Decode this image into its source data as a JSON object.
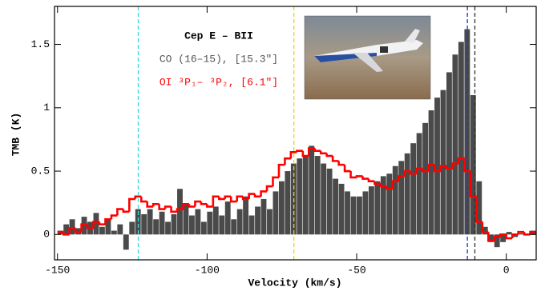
{
  "chart_data": {
    "type": "histogram",
    "title": "Cep E – BII",
    "x_label": "Velocity (km/s)",
    "y_label": "TMB (K)",
    "xlim": [
      -151,
      10
    ],
    "ylim": [
      -0.2,
      1.8
    ],
    "xticks": [
      -150,
      -100,
      -50,
      0
    ],
    "yticks": [
      0,
      0.5,
      1,
      1.5
    ],
    "bins": [
      -150,
      -148,
      -146,
      -144,
      -142,
      -140,
      -138,
      -136,
      -134,
      -132,
      -130,
      -128,
      -126,
      -124,
      -122,
      -120,
      -118,
      -116,
      -114,
      -112,
      -110,
      -108,
      -106,
      -104,
      -102,
      -100,
      -98,
      -96,
      -94,
      -92,
      -90,
      -88,
      -86,
      -84,
      -82,
      -80,
      -78,
      -76,
      -74,
      -72,
      -70,
      -68,
      -66,
      -64,
      -62,
      -60,
      -58,
      -56,
      -54,
      -52,
      -50,
      -48,
      -46,
      -44,
      -42,
      -40,
      -38,
      -36,
      -34,
      -32,
      -30,
      -28,
      -26,
      -24,
      -22,
      -20,
      -18,
      -16,
      -14,
      -12,
      -10,
      -8,
      -6,
      -4,
      -2,
      0,
      2,
      4,
      6,
      8,
      10
    ],
    "series": [
      {
        "name": "CO (16–15), [15.3″]",
        "color": "#4a4a4a",
        "style": "bars",
        "values": [
          0.03,
          0.08,
          0.12,
          0.05,
          0.14,
          0.1,
          0.17,
          0.06,
          0.12,
          0.03,
          0.08,
          -0.12,
          0.1,
          0.2,
          0.16,
          0.2,
          0.12,
          0.18,
          0.1,
          0.16,
          0.36,
          0.24,
          0.15,
          0.2,
          0.1,
          0.18,
          0.22,
          0.15,
          0.26,
          0.12,
          0.2,
          0.3,
          0.15,
          0.22,
          0.28,
          0.2,
          0.34,
          0.42,
          0.5,
          0.56,
          0.6,
          0.62,
          0.7,
          0.62,
          0.56,
          0.52,
          0.44,
          0.4,
          0.34,
          0.3,
          0.3,
          0.34,
          0.38,
          0.42,
          0.46,
          0.48,
          0.54,
          0.58,
          0.64,
          0.72,
          0.8,
          0.88,
          0.98,
          1.08,
          1.14,
          1.28,
          1.42,
          1.52,
          1.62,
          1.1,
          0.42,
          0.06,
          -0.06,
          -0.1,
          -0.06,
          0.02,
          -0.02,
          0.01,
          0.0,
          0.03
        ]
      },
      {
        "name": "OI ³P₁– ³P₂, [6.1″]",
        "color": "#ff0000",
        "style": "step",
        "values": [
          0.02,
          0.0,
          0.05,
          0.02,
          0.08,
          0.05,
          0.1,
          0.08,
          0.12,
          0.15,
          0.2,
          0.18,
          0.28,
          0.3,
          0.26,
          0.22,
          0.24,
          0.2,
          0.22,
          0.18,
          0.2,
          0.24,
          0.22,
          0.26,
          0.24,
          0.22,
          0.3,
          0.28,
          0.3,
          0.26,
          0.3,
          0.28,
          0.32,
          0.3,
          0.34,
          0.38,
          0.45,
          0.55,
          0.6,
          0.65,
          0.66,
          0.62,
          0.68,
          0.66,
          0.64,
          0.62,
          0.58,
          0.55,
          0.5,
          0.45,
          0.46,
          0.44,
          0.42,
          0.4,
          0.38,
          0.36,
          0.42,
          0.46,
          0.5,
          0.48,
          0.52,
          0.5,
          0.55,
          0.5,
          0.54,
          0.52,
          0.56,
          0.6,
          0.5,
          0.3,
          0.1,
          0.02,
          -0.05,
          -0.02,
          0.0,
          -0.03,
          0.0,
          0.02,
          0.0,
          0.02
        ]
      }
    ],
    "vlines": [
      {
        "x": -123,
        "color": "#33dddd"
      },
      {
        "x": -71,
        "color": "#e8d800"
      },
      {
        "x": -13,
        "color": "#2233dd"
      },
      {
        "x": -10.5,
        "color": "#333333"
      }
    ]
  }
}
